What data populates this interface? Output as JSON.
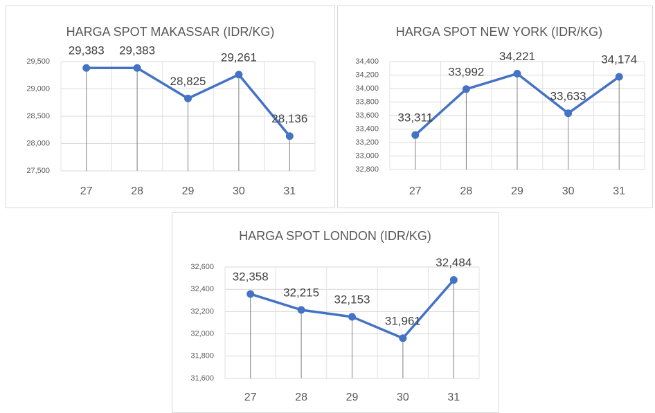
{
  "chart_data": [
    {
      "type": "line",
      "title": "HARGA SPOT MAKASSAR (IDR/KG)",
      "categories": [
        "27",
        "28",
        "29",
        "30",
        "31"
      ],
      "values": [
        29383,
        29383,
        28825,
        29261,
        28136
      ],
      "value_labels": [
        "29,383",
        "29,383",
        "28,825",
        "29,261",
        "28,136"
      ],
      "color": "#4472c4",
      "ylim": [
        27500,
        29500
      ],
      "yticks": [
        {
          "value": 27500,
          "label": "27,500"
        },
        {
          "value": 28000,
          "label": "28,000"
        },
        {
          "value": 28500,
          "label": "28,500"
        },
        {
          "value": 29000,
          "label": "29,000"
        },
        {
          "value": 29500,
          "label": "29,500"
        }
      ],
      "grid": true
    },
    {
      "type": "line",
      "title": "HARGA SPOT NEW YORK (IDR/KG)",
      "categories": [
        "27",
        "28",
        "29",
        "30",
        "31"
      ],
      "values": [
        33311,
        33992,
        34221,
        33633,
        34174
      ],
      "value_labels": [
        "33,311",
        "33,992",
        "34,221",
        "33,633",
        "34,174"
      ],
      "color": "#4472c4",
      "ylim": [
        32800,
        34400
      ],
      "yticks": [
        {
          "value": 32800,
          "label": "32,800"
        },
        {
          "value": 33000,
          "label": "33,000"
        },
        {
          "value": 33200,
          "label": "33,200"
        },
        {
          "value": 33400,
          "label": "33,400"
        },
        {
          "value": 33600,
          "label": "33,600"
        },
        {
          "value": 33800,
          "label": "33,800"
        },
        {
          "value": 34000,
          "label": "34,000"
        },
        {
          "value": 34200,
          "label": "34,200"
        },
        {
          "value": 34400,
          "label": "34,400"
        }
      ],
      "grid": true
    },
    {
      "type": "line",
      "title": "HARGA SPOT LONDON (IDR/KG)",
      "categories": [
        "27",
        "28",
        "29",
        "30",
        "31"
      ],
      "values": [
        32358,
        32215,
        32153,
        31961,
        32484
      ],
      "value_labels": [
        "32,358",
        "32,215",
        "32,153",
        "31,961",
        "32,484"
      ],
      "color": "#4472c4",
      "ylim": [
        31600,
        32600
      ],
      "yticks": [
        {
          "value": 31600,
          "label": "31,600"
        },
        {
          "value": 31800,
          "label": "31,800"
        },
        {
          "value": 32000,
          "label": "32,000"
        },
        {
          "value": 32200,
          "label": "32,200"
        },
        {
          "value": 32400,
          "label": "32,400"
        },
        {
          "value": 32600,
          "label": "32,600"
        }
      ],
      "grid": true
    }
  ]
}
